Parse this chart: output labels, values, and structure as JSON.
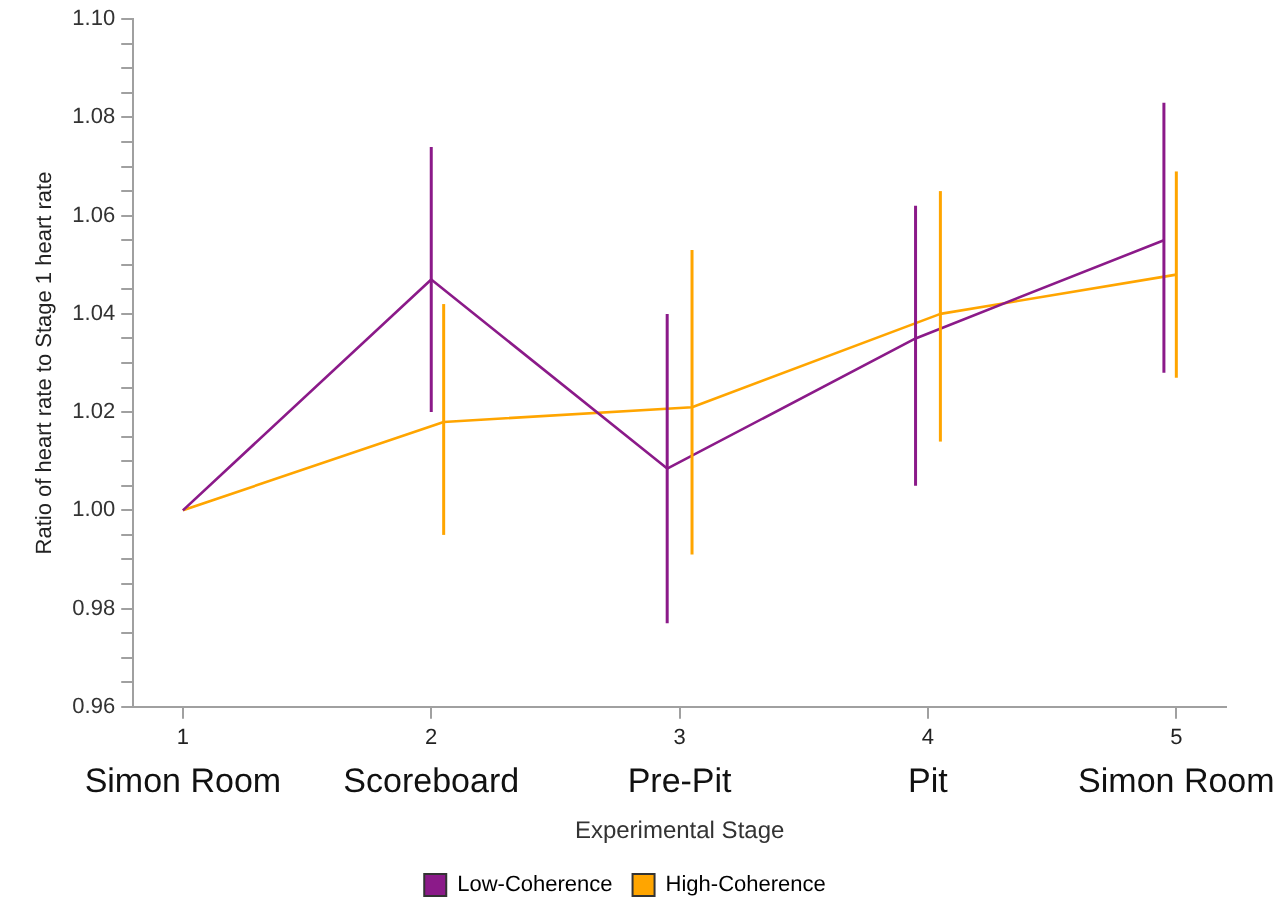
{
  "chart_data": {
    "type": "line",
    "xlabel": "Experimental Stage",
    "ylabel": "Ratio of heart rate to Stage 1 heart rate",
    "xlim": [
      0.8,
      5.2
    ],
    "xticks": [
      1,
      2,
      3,
      4,
      5
    ],
    "annotations": [
      "Simon Room",
      "Scoreboard",
      "Pre-Pit",
      "Pit",
      "Simon Room"
    ],
    "ylim": [
      0.96,
      1.1
    ],
    "yticks": [
      0.96,
      {
        "value": 0.965,
        "label": null
      },
      0.98,
      {
        "value": 0.985,
        "label": null
      },
      {
        "value": 0.99,
        "label": null
      },
      {
        "value": 0.995,
        "label": null
      },
      {
        "value": 1.0,
        "label": "1.00"
      },
      {
        "value": 1.005,
        "label": null
      },
      {
        "value": 1.01,
        "label": null
      },
      {
        "value": 1.015,
        "label": null
      },
      1.02,
      {
        "value": 1.025,
        "label": null
      },
      {
        "value": 1.03,
        "label": null
      },
      {
        "value": 1.035,
        "label": null
      },
      1.04,
      {
        "value": 1.045,
        "label": null
      },
      {
        "value": 1.05,
        "label": null
      },
      {
        "value": 1.055,
        "label": null
      },
      1.06,
      {
        "value": 1.065,
        "label": null
      },
      {
        "value": 1.07,
        "label": null
      },
      {
        "value": 1.075,
        "label": null
      },
      1.08,
      {
        "value": 1.085,
        "label": null
      },
      {
        "value": 1.09,
        "label": null
      },
      {
        "value": 1.095,
        "label": null
      },
      {
        "value": 1.1,
        "label": "1.10"
      },
      {
        "value": 0.97,
        "label": null
      },
      {
        "value": 0.975,
        "label": null
      }
    ],
    "series": [
      {
        "name": "Low-Coherence",
        "color": "#8b1a89",
        "x": [
          1,
          2,
          2.95,
          3.95,
          4.95
        ],
        "values": [
          1.0,
          1.047,
          1.0085,
          1.035,
          1.055
        ],
        "errors": [
          null,
          [
            1.02,
            1.074
          ],
          [
            0.977,
            1.04
          ],
          [
            1.005,
            1.062
          ],
          [
            1.028,
            1.083
          ]
        ]
      },
      {
        "name": "High-Coherence",
        "color": "#ffa500",
        "x": [
          1,
          2.05,
          3.05,
          4.05,
          5.0
        ],
        "values": [
          1.0,
          1.018,
          1.021,
          1.04,
          1.048
        ],
        "errors": [
          null,
          [
            0.995,
            1.042
          ],
          [
            0.991,
            1.053
          ],
          [
            1.014,
            1.065
          ],
          [
            1.027,
            1.069
          ]
        ]
      }
    ],
    "grid": false,
    "legend": "bottom",
    "marker": "none",
    "line_style": "solid"
  }
}
